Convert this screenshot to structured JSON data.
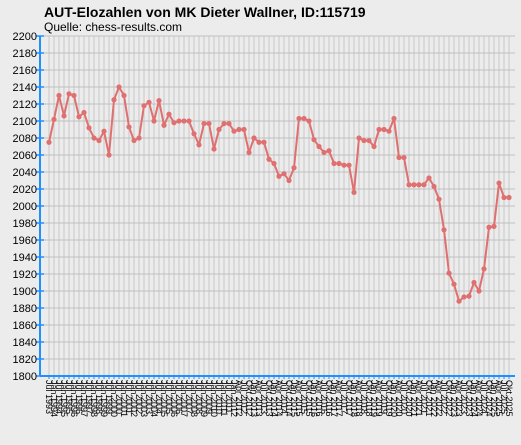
{
  "chart_data": {
    "type": "line",
    "title": "AUT-Elozahlen von MK Dieter Wallner, ID:115719",
    "subtitle": "Quelle: chess-results.com",
    "categories": [
      "Jul 1993",
      "Jan 1994",
      "Jul 1994",
      "Jan 1995",
      "Jul 1995",
      "Jan 1996",
      "Jul 1996",
      "Jan 1997",
      "Jul 1997",
      "Jan 1998",
      "Jul 1998",
      "Jan 1999",
      "Jul 1999",
      "Jan 2000",
      "Jul 2000",
      "Jan 2001",
      "Jul 2001",
      "Jan 2002",
      "Jul 2002",
      "Jan 2003",
      "Jul 2003",
      "Jan 2004",
      "Jul 2004",
      "Jan 2005",
      "Jul 2005",
      "Jan 2006",
      "Jul 2006",
      "Jan 2007",
      "Jul 2007",
      "Jan 2008",
      "Jul 2008",
      "Jan 2009",
      "Jul 2009",
      "Jan 2010",
      "Jul 2010",
      "Jan 2011",
      "Jul 2011",
      "Jan 2012",
      "Apr 2012",
      "Jul 2012",
      "Okt 2012",
      "Jan 2013",
      "Apr 2013",
      "Jul 2013",
      "Okt 2013",
      "Jan 2014",
      "Apr 2014",
      "Jul 2014",
      "Okt 2014",
      "Jan 2015",
      "Apr 2015",
      "Jul 2015",
      "Okt 2015",
      "Jan 2016",
      "Apr 2016",
      "Jul 2016",
      "Okt 2016",
      "Jan 2017",
      "Apr 2017",
      "Jul 2017",
      "Okt 2017",
      "Jan 2018",
      "Apr 2018",
      "Jul 2018",
      "Okt 2018",
      "Jan 2019",
      "Apr 2019",
      "Jul 2019",
      "Okt 2019",
      "Jan 2020",
      "Apr 2020",
      "Jul 2020",
      "Okt 2020",
      "Jan 2021",
      "Apr 2021",
      "Jul 2021",
      "Okt 2021",
      "Jan 2022",
      "Apr 2022",
      "Jul 2022",
      "Okt 2022",
      "Jan 2023",
      "Apr 2023",
      "Jul 2023",
      "Okt 2023",
      "Jan 2024",
      "Apr 2024",
      "Jul 2024",
      "Okt 2024",
      "Jan 2025",
      "Apr 2025",
      "Jul 2025",
      "Okt 2025"
    ],
    "series": [
      {
        "color": "#e07070",
        "values": [
          2075,
          2102,
          2130,
          2106,
          2132,
          2130,
          2105,
          2110,
          2092,
          2080,
          2077,
          2088,
          2060,
          2125,
          2140,
          2130,
          2093,
          2077,
          2080,
          2118,
          2122,
          2100,
          2124,
          2095,
          2108,
          2098,
          2100,
          2100,
          2100,
          2085,
          2072,
          2097,
          2097,
          2067,
          2090,
          2097,
          2097,
          2088,
          2090,
          2090,
          2063,
          2080,
          2075,
          2075,
          2055,
          2050,
          2035,
          2038,
          2030,
          2045,
          2103,
          2103,
          2100,
          2078,
          2070,
          2063,
          2065,
          2050,
          2050,
          2048,
          2048,
          2016,
          2080,
          2077,
          2077,
          2070,
          2090,
          2090,
          2088,
          2103,
          2057,
          2057,
          2025,
          2025,
          2025,
          2025,
          2033,
          2023,
          2008,
          1972,
          1921,
          1908,
          1888,
          1893,
          1894,
          1910,
          1900,
          1926,
          1975,
          1976,
          2027,
          2010,
          2010
        ]
      }
    ],
    "ylim": [
      1800,
      2200
    ],
    "yticks": [
      1800,
      1820,
      1840,
      1860,
      1880,
      1900,
      1920,
      1940,
      1960,
      1980,
      2000,
      2020,
      2040,
      2060,
      2080,
      2100,
      2120,
      2140,
      2160,
      2180,
      2200
    ],
    "grid": true
  }
}
